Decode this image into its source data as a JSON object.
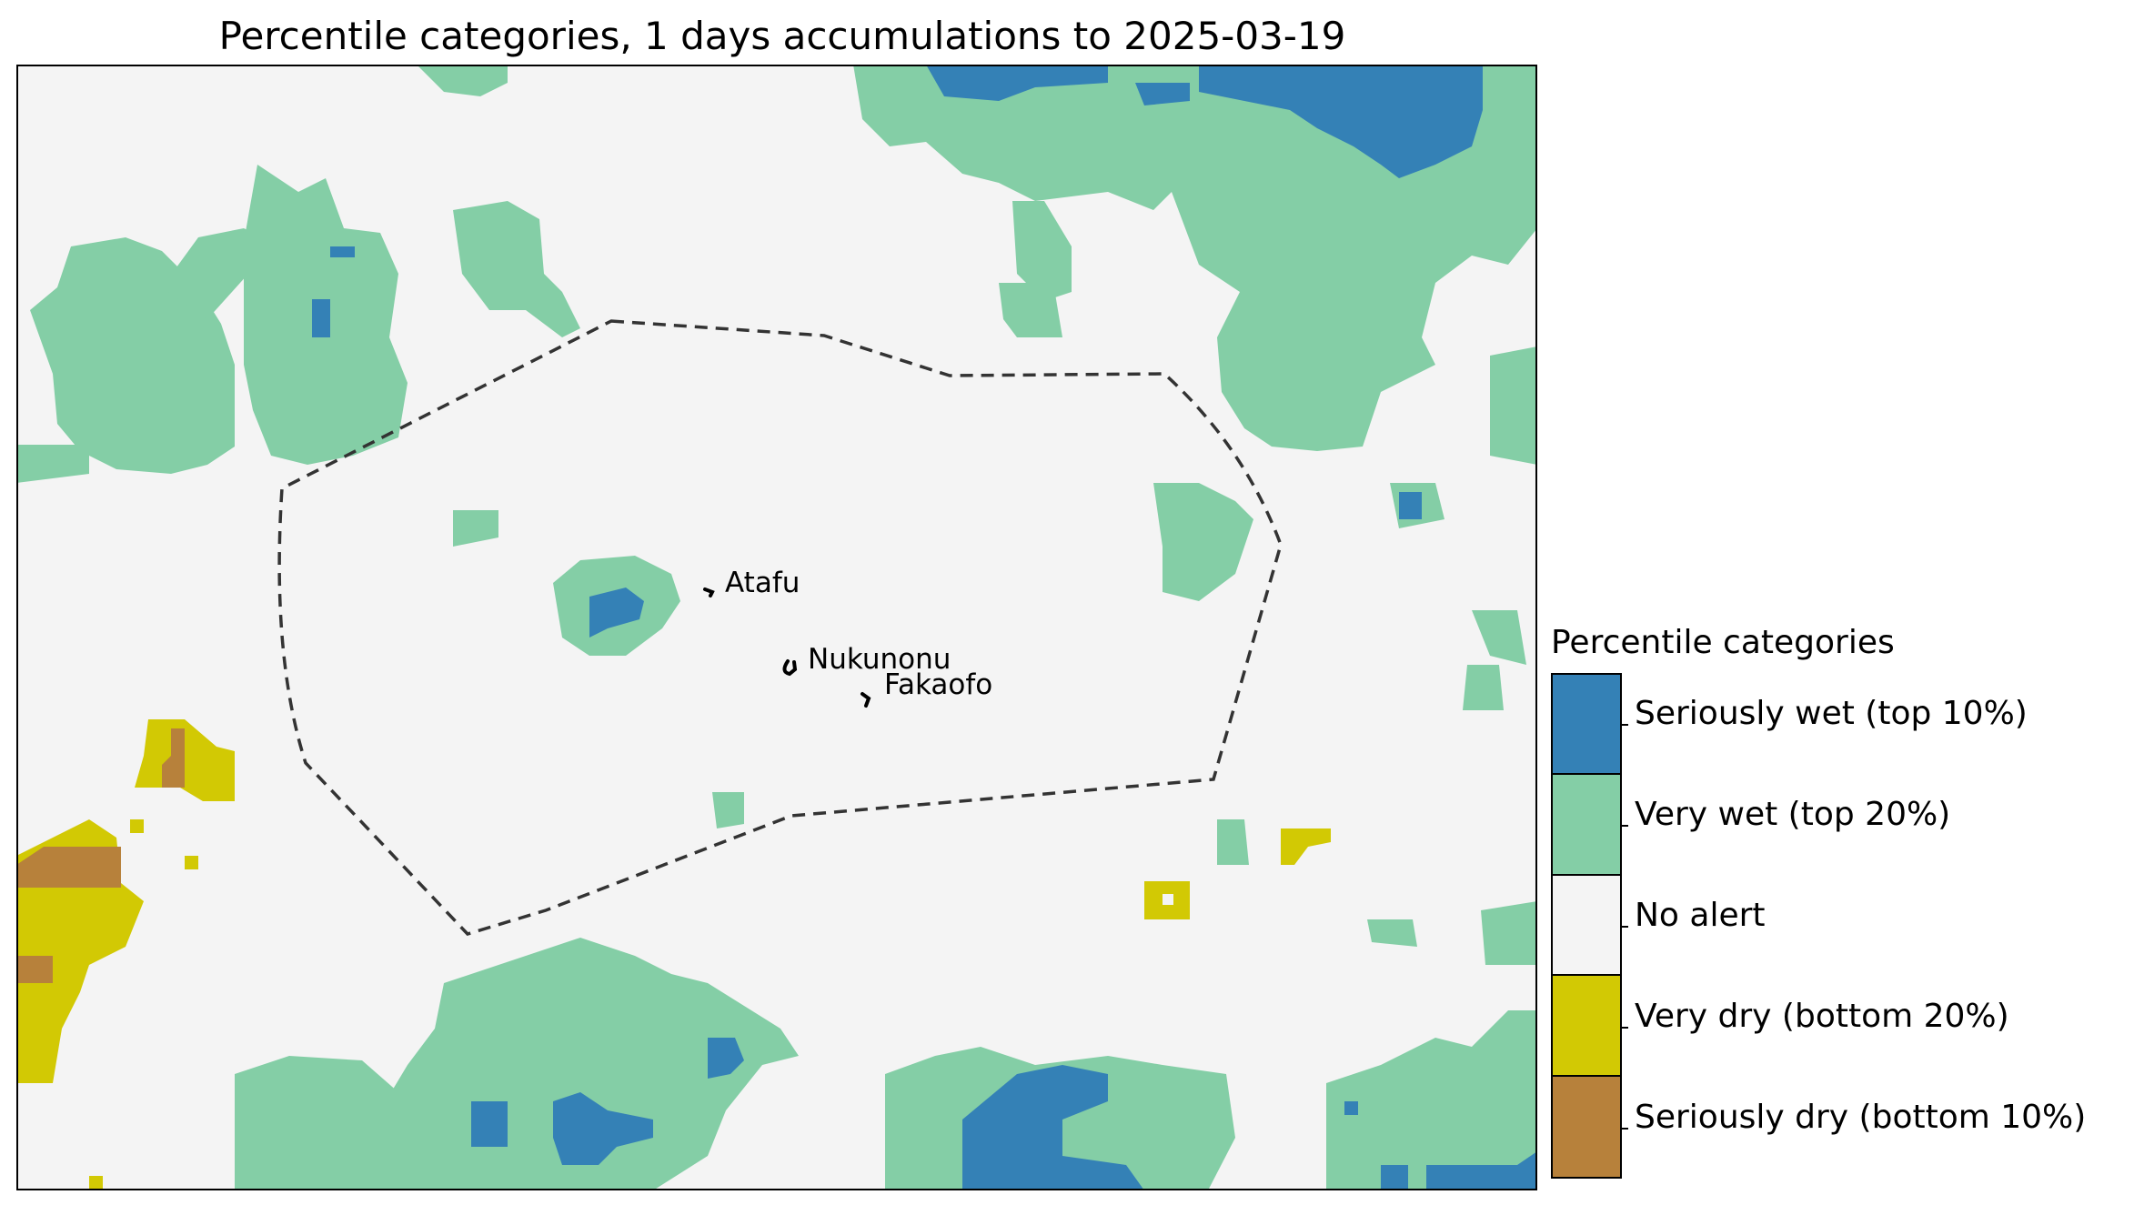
{
  "title": "Percentile categories, 1 days accumulations to 2025-03-19",
  "colors": {
    "seriously_wet": "#3481b6",
    "very_wet": "#84cea6",
    "no_alert": "#f4f4f4",
    "very_dry": "#d2c904",
    "seriously_dry": "#b7813b",
    "boundary": "#333333",
    "frame": "#000000"
  },
  "places": [
    {
      "name": "Atafu"
    },
    {
      "name": "Nukunonu"
    },
    {
      "name": "Fakaofo"
    }
  ],
  "legend": {
    "title": "Percentile categories",
    "items": [
      {
        "label": "Seriously wet (top 10%)",
        "color": "#3481b6"
      },
      {
        "label": "Very wet (top 20%)",
        "color": "#84cea6"
      },
      {
        "label": "No alert",
        "color": "#f4f4f4"
      },
      {
        "label": "Very dry (bottom 20%)",
        "color": "#d2c904"
      },
      {
        "label": "Seriously dry (bottom 10%)",
        "color": "#b7813b"
      }
    ]
  }
}
